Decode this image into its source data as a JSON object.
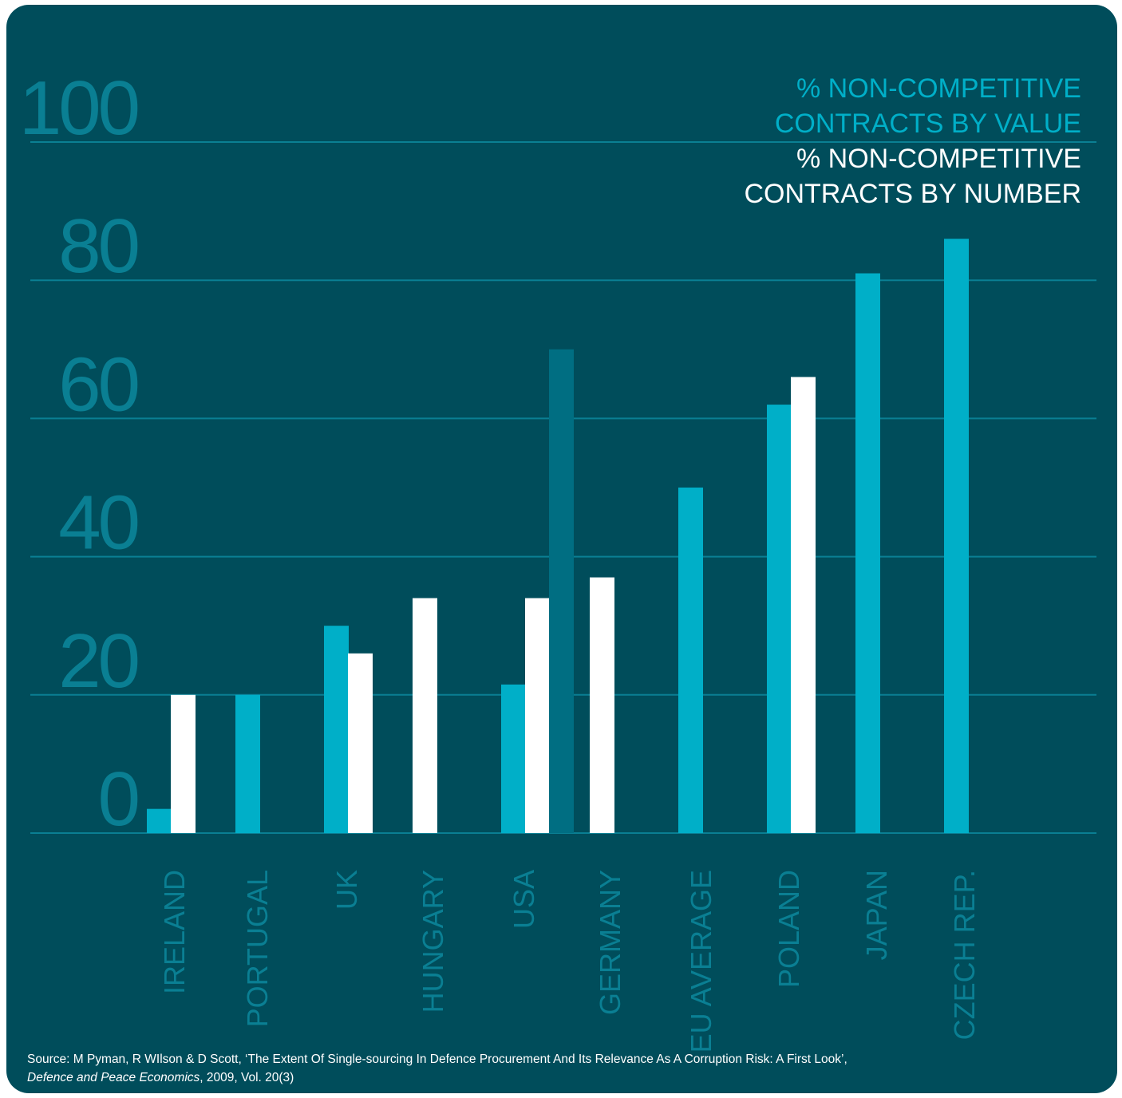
{
  "chart_data": {
    "type": "bar",
    "categories": [
      "IRELAND",
      "PORTUGAL",
      "UK",
      "HUNGARY",
      "USA",
      "GERMANY",
      "EU AVERAGE",
      "POLAND",
      "JAPAN",
      "CZECH REP."
    ],
    "series": [
      {
        "name": "% NON-COMPETITIVE CONTRACTS BY VALUE",
        "color": "#00afc8",
        "values": [
          3.5,
          20,
          30,
          null,
          21.5,
          null,
          50,
          62,
          81,
          86
        ]
      },
      {
        "name": "% NON-COMPETITIVE CONTRACTS BY NUMBER",
        "color": "#ffffff",
        "values": [
          20,
          null,
          26,
          34,
          34,
          37,
          null,
          66,
          null,
          null
        ]
      },
      {
        "color": "#006e82",
        "values": [
          null,
          null,
          null,
          null,
          70,
          null,
          null,
          null,
          null,
          null
        ]
      }
    ],
    "yticks": [
      "0",
      "20",
      "40",
      "60",
      "80",
      "100"
    ],
    "ylim": [
      0,
      100
    ],
    "grid": true,
    "legend": "top-right"
  },
  "legend": {
    "value_line1": "% NON-COMPETITIVE",
    "value_line2": "CONTRACTS BY VALUE",
    "number_line1": "% NON-COMPETITIVE",
    "number_line2": "CONTRACTS BY NUMBER"
  },
  "source": {
    "text": "Source: M Pyman, R WIlson & D Scott, ‘The Extent Of Single-sourcing In Defence Procurement And Its Relevance As A Corruption Risk: A First Look’,",
    "journal": "Defence and Peace Economics",
    "details": ", 2009, Vol. 20(3)"
  }
}
